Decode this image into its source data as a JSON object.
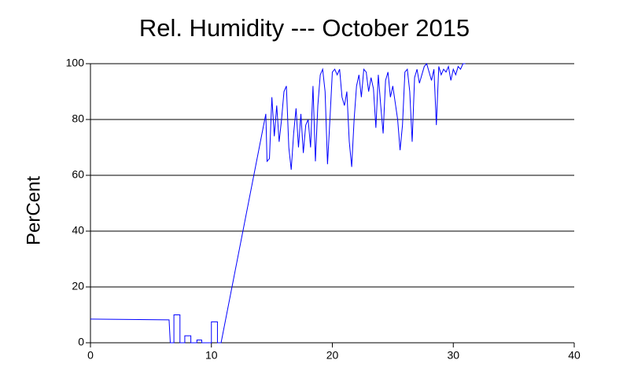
{
  "chart_data": {
    "type": "line",
    "title": "Rel. Humidity --- October 2015",
    "y_label": "PerCent",
    "x": [
      0,
      6.5,
      6.6,
      6.9,
      6.9,
      7.4,
      7.4,
      7.8,
      7.8,
      8.3,
      8.3,
      8.8,
      8.8,
      9.2,
      9.2,
      10,
      10,
      10.5,
      10.5,
      10.8,
      14.5,
      14.6,
      14.8,
      15.0,
      15.2,
      15.4,
      15.6,
      15.8,
      16.0,
      16.2,
      16.4,
      16.6,
      16.8,
      17.0,
      17.2,
      17.4,
      17.6,
      17.8,
      18.0,
      18.2,
      18.4,
      18.6,
      18.8,
      19.0,
      19.2,
      19.4,
      19.6,
      19.8,
      20.0,
      20.2,
      20.4,
      20.6,
      20.8,
      21.0,
      21.2,
      21.4,
      21.6,
      21.8,
      22.0,
      22.2,
      22.4,
      22.6,
      22.8,
      23.0,
      23.2,
      23.4,
      23.6,
      23.8,
      24.0,
      24.2,
      24.4,
      24.6,
      24.8,
      25.0,
      25.2,
      25.4,
      25.6,
      25.8,
      26.0,
      26.2,
      26.4,
      26.6,
      26.8,
      27.0,
      27.2,
      27.4,
      27.6,
      27.8,
      28.0,
      28.2,
      28.4,
      28.6,
      28.8,
      29.0,
      29.2,
      29.4,
      29.6,
      29.8,
      30.0,
      30.2,
      30.4,
      30.6,
      30.8,
      31.0
    ],
    "values": [
      8.5,
      8.2,
      0,
      0,
      10,
      10,
      0,
      0,
      2.5,
      2.5,
      0,
      0,
      1,
      1,
      0,
      0,
      7.5,
      7.5,
      0,
      0,
      82,
      65,
      66,
      88,
      74,
      85,
      72,
      80,
      90,
      92,
      70,
      62,
      75,
      84,
      70,
      82,
      68,
      78,
      80,
      70,
      92,
      65,
      85,
      96,
      98,
      90,
      64,
      80,
      97,
      98,
      96,
      98,
      88,
      85,
      90,
      72,
      63,
      80,
      92,
      96,
      88,
      98,
      97,
      90,
      95,
      91,
      77,
      96,
      85,
      75,
      94,
      97,
      88,
      92,
      86,
      80,
      69,
      78,
      97,
      98,
      90,
      72,
      95,
      98,
      93,
      96,
      99,
      100,
      97,
      94,
      98,
      78,
      99,
      96,
      98,
      97,
      99,
      94,
      98,
      96,
      99,
      98,
      100,
      100
    ],
    "color": "#0000ff",
    "xlim": [
      0,
      40
    ],
    "xticks": [
      0,
      10,
      20,
      30,
      40
    ],
    "ylim": [
      0,
      100
    ],
    "yticks": [
      0,
      20,
      40,
      60,
      80,
      100
    ],
    "grid": true
  }
}
